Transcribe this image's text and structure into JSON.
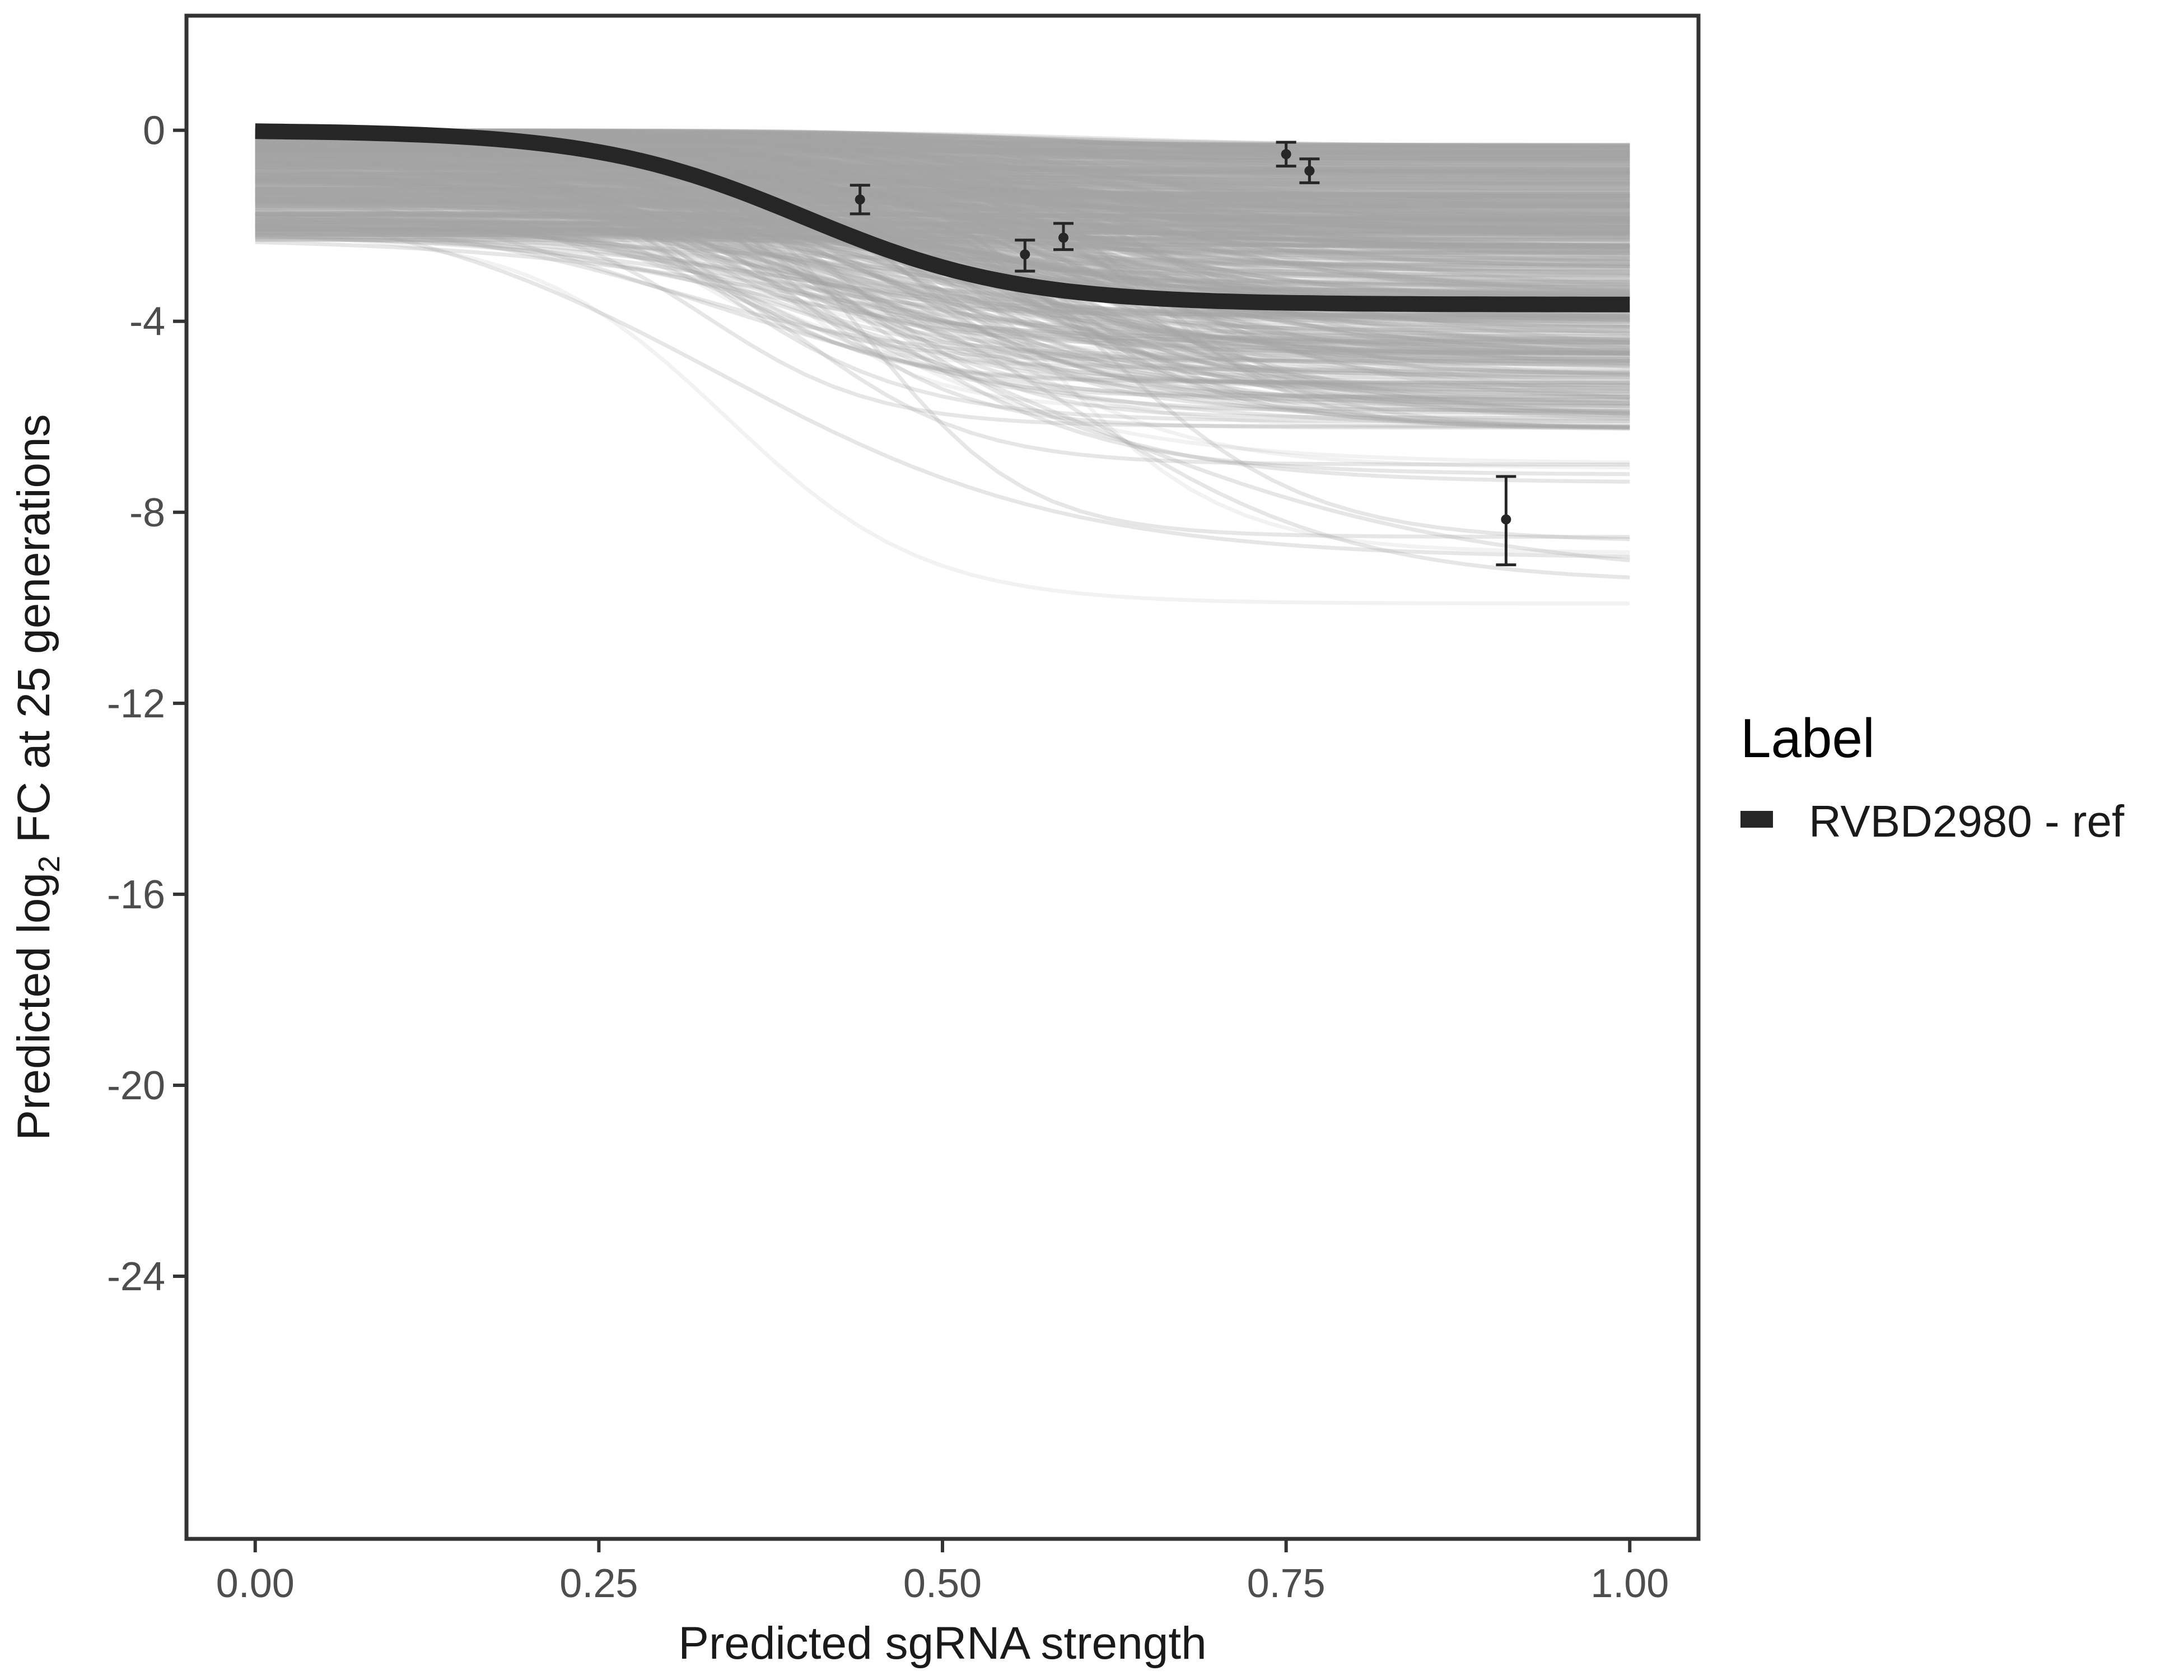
{
  "chart_data": {
    "type": "line",
    "title": "",
    "xlabel": "Predicted sgRNA strength",
    "ylabel": {
      "prefix": "Predicted  log",
      "subscript": "2",
      "suffix": " FC at 25 generations"
    },
    "xlim": [
      -0.05,
      1.05
    ],
    "ylim": [
      -29.5,
      2.4
    ],
    "x_ticks": [
      0,
      0.25,
      0.5,
      0.75,
      1
    ],
    "x_tick_labels": [
      "0.00",
      "0.25",
      "0.50",
      "0.75",
      "1.00"
    ],
    "y_ticks": [
      0,
      -4,
      -8,
      -12,
      -16,
      -20,
      -24
    ],
    "y_tick_labels": [
      "0",
      "-4",
      "-8",
      "-12",
      "-16",
      "-20",
      "-24"
    ],
    "grid": false,
    "legend": {
      "title": "Label",
      "position": "right",
      "entries": [
        {
          "label": "RVBD2980 - ref",
          "color": "#262626"
        }
      ]
    },
    "series": [
      {
        "name": "RVBD2980 - ref",
        "color": "#262626",
        "curve": {
          "upper": 0,
          "lower": -3.65,
          "midpoint": 0.4,
          "steepness": 13
        }
      }
    ],
    "posterior_draws": {
      "color": "#a6a6a6",
      "count": 600
    },
    "observations": [
      {
        "x": 0.44,
        "y": -1.45,
        "ymin": -1.75,
        "ymax": -1.15
      },
      {
        "x": 0.56,
        "y": -2.6,
        "ymin": -2.95,
        "ymax": -2.3
      },
      {
        "x": 0.588,
        "y": -2.25,
        "ymin": -2.5,
        "ymax": -1.95
      },
      {
        "x": 0.75,
        "y": -0.5,
        "ymin": -0.75,
        "ymax": -0.25
      },
      {
        "x": 0.767,
        "y": -0.85,
        "ymin": -1.1,
        "ymax": -0.6
      },
      {
        "x": 0.91,
        "y": -8.15,
        "ymin": -9.1,
        "ymax": -7.25
      }
    ]
  }
}
